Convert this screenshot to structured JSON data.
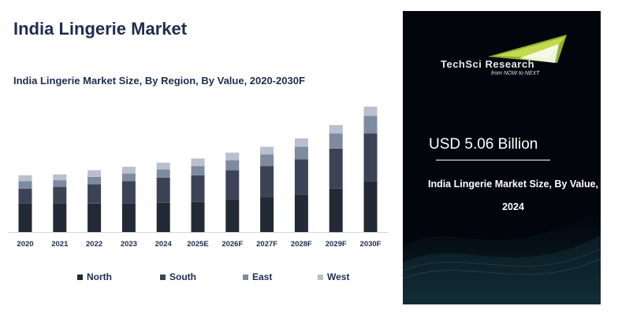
{
  "title": "India Lingerie Market",
  "subtitle": "India Lingerie Market Size, By Region, By Value, 2020-2030F",
  "chart_data": {
    "type": "bar",
    "stacked": true,
    "categories": [
      "2020",
      "2021",
      "2022",
      "2023",
      "2024",
      "2025E",
      "2026F",
      "2027F",
      "2028F",
      "2029F",
      "2030F"
    ],
    "series": [
      {
        "name": "North",
        "color": "#242a35",
        "values": [
          34,
          34,
          34,
          34,
          35,
          36,
          39,
          42,
          45,
          52,
          61
        ]
      },
      {
        "name": "South",
        "color": "#3c4356",
        "values": [
          18,
          20,
          23,
          27,
          30,
          32,
          35,
          37,
          42,
          48,
          57
        ]
      },
      {
        "name": "East",
        "color": "#7d8aa0",
        "values": [
          9,
          8,
          9,
          9,
          10,
          11,
          12,
          14,
          15,
          18,
          21
        ]
      },
      {
        "name": "West",
        "color": "#b9bfcc",
        "values": [
          7,
          7,
          8,
          8,
          8,
          9,
          9,
          9,
          10,
          10,
          11
        ]
      }
    ],
    "ylim": [
      0,
      160
    ],
    "xlabel": "",
    "ylabel": "",
    "legend": "bottom"
  },
  "panel": {
    "brand_name": "TechSci Research",
    "brand_tagline": "from NOW to NEXT",
    "kpi_value": "USD 5.06 Billion",
    "kpi_caption": "India Lingerie Market Size, By Value, 2024"
  }
}
